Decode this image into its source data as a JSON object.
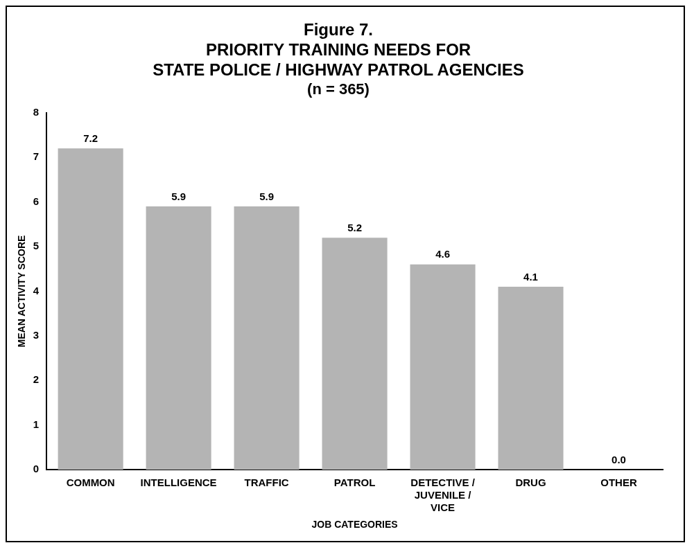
{
  "chart_data": {
    "type": "bar",
    "title": "Figure 7.\nPRIORITY TRAINING NEEDS FOR\nSTATE POLICE / HIGHWAY PATROL AGENCIES",
    "subtitle": "(n = 365)",
    "xlabel": "JOB CATEGORIES",
    "ylabel": "MEAN ACTIVITY SCORE",
    "categories": [
      "COMMON",
      "INTELLIGENCE",
      "TRAFFIC",
      "PATROL",
      "DETECTIVE /\nJUVENILE /\nVICE",
      "DRUG",
      "OTHER"
    ],
    "values": [
      7.2,
      5.9,
      5.9,
      5.2,
      4.6,
      4.1,
      0.0
    ],
    "value_labels": [
      "7.2",
      "5.9",
      "5.9",
      "5.2",
      "4.6",
      "4.1",
      "0.0"
    ],
    "color": "#b4b4b4",
    "ylim": [
      0,
      8
    ],
    "yticks": [
      0,
      1,
      2,
      3,
      4,
      5,
      6,
      7,
      8
    ],
    "grid": false,
    "legend": false
  }
}
